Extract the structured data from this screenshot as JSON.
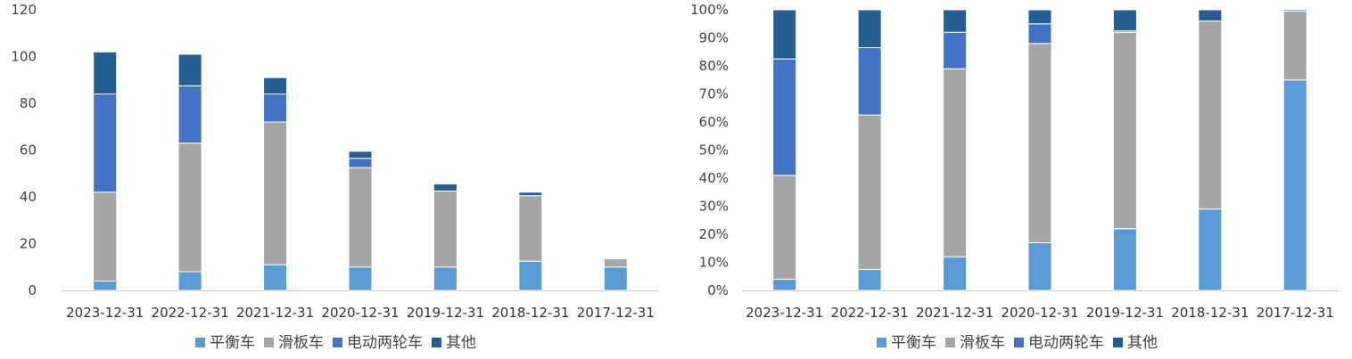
{
  "chart_data": [
    {
      "type": "bar",
      "stacked": true,
      "title": "",
      "xlabel": "",
      "ylabel": "",
      "ylim": [
        0,
        120
      ],
      "yticks": [
        0,
        20,
        40,
        60,
        80,
        100,
        120
      ],
      "grid": false,
      "legend_position": "bottom",
      "categories": [
        "2023-12-31",
        "2022-12-31",
        "2021-12-31",
        "2020-12-31",
        "2019-12-31",
        "2018-12-31",
        "2017-12-31"
      ],
      "series": [
        {
          "name": "平衡车",
          "color": "#5b9bd5",
          "values": [
            4,
            8,
            11,
            10,
            10,
            12.5,
            10
          ]
        },
        {
          "name": "滑板车",
          "color": "#a5a5a5",
          "values": [
            38,
            55,
            61,
            42.5,
            32.5,
            28,
            3.5
          ]
        },
        {
          "name": "电动两轮车",
          "color": "#4472c4",
          "values": [
            42,
            24.5,
            12,
            4,
            0,
            0,
            0
          ]
        },
        {
          "name": "其他",
          "color": "#255e91",
          "values": [
            18,
            13.5,
            7,
            3,
            3,
            1.5,
            0
          ]
        }
      ]
    },
    {
      "type": "bar",
      "stacked": true,
      "percent": true,
      "title": "",
      "xlabel": "",
      "ylabel": "",
      "ylim": [
        0,
        100
      ],
      "yticks": [
        "0%",
        "10%",
        "20%",
        "30%",
        "40%",
        "50%",
        "60%",
        "70%",
        "80%",
        "90%",
        "100%"
      ],
      "grid": false,
      "legend_position": "bottom",
      "categories": [
        "2023-12-31",
        "2022-12-31",
        "2021-12-31",
        "2020-12-31",
        "2019-12-31",
        "2018-12-31",
        "2017-12-31"
      ],
      "series": [
        {
          "name": "平衡车",
          "color": "#5b9bd5",
          "values": [
            4,
            7.5,
            12,
            17,
            22,
            29,
            75
          ]
        },
        {
          "name": "滑板车",
          "color": "#a5a5a5",
          "values": [
            37,
            55,
            67,
            71,
            70,
            67,
            24.5
          ]
        },
        {
          "name": "电动两轮车",
          "color": "#4472c4",
          "values": [
            41.5,
            24,
            13,
            7,
            0.5,
            0,
            0
          ]
        },
        {
          "name": "其他",
          "color": "#255e91",
          "values": [
            17.5,
            13.5,
            8,
            5,
            7.5,
            4,
            0.5
          ]
        }
      ]
    }
  ]
}
